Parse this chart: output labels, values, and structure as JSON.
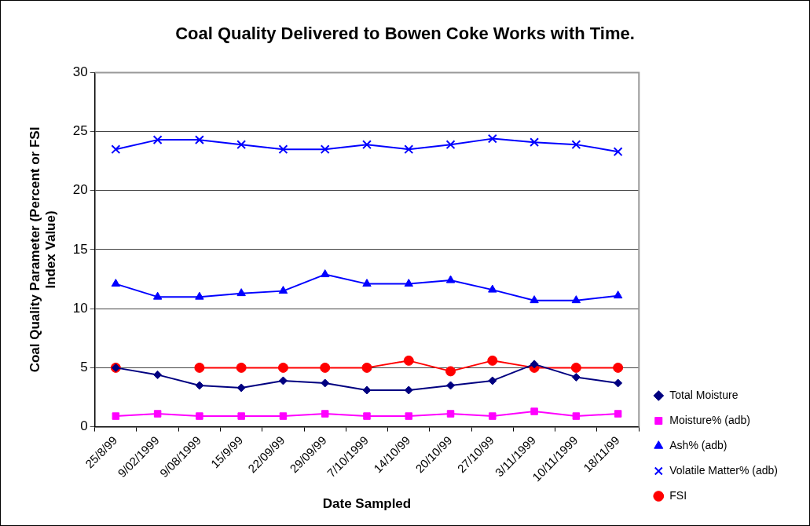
{
  "chart_data": {
    "type": "line",
    "title": "Coal Quality Delivered to Bowen Coke Works with Time.",
    "xlabel": "Date Sampled",
    "ylabel": "Coal Quality Parameter (Percent or FSI Index Value)",
    "categories": [
      "25/8/99",
      "9/02/1999",
      "9/08/1999",
      "15/9/99",
      "22/09/99",
      "29/09/99",
      "7/10/1999",
      "14/10/99",
      "20/10/99",
      "27/10/99",
      "3/11/1999",
      "10/11/1999",
      "18/11/99"
    ],
    "ylim": [
      0,
      30
    ],
    "yticks": [
      0,
      5,
      10,
      15,
      20,
      25,
      30
    ],
    "grid": "y",
    "legend": "bottom right",
    "series": [
      {
        "name": "Total Moisture",
        "color": "#000080",
        "marker": "diamond",
        "values": [
          5.0,
          4.4,
          3.5,
          3.3,
          3.9,
          3.7,
          3.1,
          3.1,
          3.5,
          3.9,
          5.3,
          4.2,
          3.7
        ]
      },
      {
        "name": "Moisture% (adb)",
        "color": "#ff00ff",
        "marker": "square",
        "values": [
          0.9,
          1.1,
          0.9,
          0.9,
          0.9,
          1.1,
          0.9,
          0.9,
          1.1,
          0.9,
          1.3,
          0.9,
          1.1
        ]
      },
      {
        "name": "Ash% (adb)",
        "color": "#0000ff",
        "marker": "triangle",
        "values": [
          12.1,
          11.0,
          11.0,
          11.3,
          11.5,
          12.9,
          12.1,
          12.1,
          12.4,
          11.6,
          10.7,
          10.7,
          11.1
        ]
      },
      {
        "name": "Volatile Matter% (adb)",
        "color": "#0000ff",
        "marker": "cross",
        "values": [
          23.5,
          24.3,
          24.3,
          23.9,
          23.5,
          23.5,
          23.9,
          23.5,
          23.9,
          24.4,
          24.1,
          23.9,
          23.3
        ]
      },
      {
        "name": "FSI",
        "color": "#ff0000",
        "marker": "circle",
        "values": [
          5.0,
          null,
          5.0,
          5.0,
          5.0,
          5.0,
          5.0,
          5.6,
          4.7,
          5.6,
          5.0,
          5.0,
          5.0
        ]
      }
    ]
  }
}
